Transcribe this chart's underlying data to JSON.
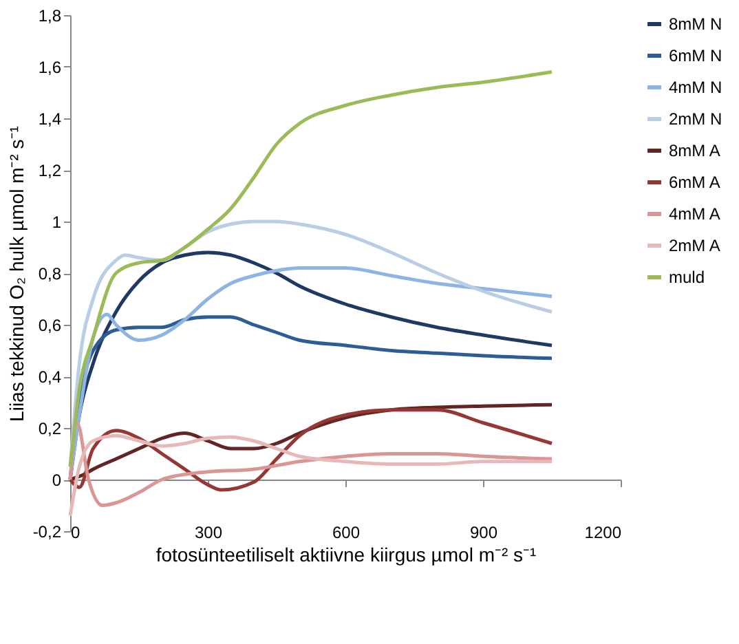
{
  "chart_data": {
    "type": "line",
    "xlabel": "fotosünteetiliselt aktiivne kiirgus µmol m⁻² s⁻¹",
    "ylabel": "Liias tekkinud O₂ hulk µmol m⁻² s⁻¹",
    "xlim": [
      0,
      1200
    ],
    "xticks": [
      0,
      300,
      600,
      900,
      1200
    ],
    "ylim": [
      -0.2,
      1.8
    ],
    "yticks": [
      {
        "value": -0.2,
        "label": "-0,2"
      },
      0,
      {
        "value": 0.2,
        "label": "0,2"
      },
      {
        "value": 0.4,
        "label": "0,4"
      },
      {
        "value": 0.6,
        "label": "0,6"
      },
      {
        "value": 0.8,
        "label": "0,8"
      },
      1,
      {
        "value": 1.2,
        "label": "1,2"
      },
      {
        "value": 1.4,
        "label": "1,4"
      },
      {
        "value": 1.6,
        "label": "1,6"
      },
      {
        "value": 1.8,
        "label": "1,8"
      }
    ],
    "grid": false,
    "legend": "right",
    "marker": "none",
    "line_style": "solid",
    "series": [
      {
        "name": "8mM N",
        "color": "#1f3864",
        "x": [
          0,
          20,
          50,
          100,
          150,
          200,
          250,
          300,
          350,
          400,
          450,
          500,
          600,
          700,
          800,
          900,
          1050
        ],
        "values": [
          0.0,
          0.25,
          0.45,
          0.65,
          0.77,
          0.84,
          0.87,
          0.88,
          0.87,
          0.84,
          0.8,
          0.75,
          0.68,
          0.63,
          0.59,
          0.56,
          0.52
        ]
      },
      {
        "name": "6mM N",
        "color": "#2e5c94",
        "x": [
          0,
          20,
          50,
          100,
          150,
          200,
          250,
          300,
          350,
          400,
          450,
          500,
          600,
          700,
          800,
          900,
          1050
        ],
        "values": [
          0.0,
          0.3,
          0.5,
          0.58,
          0.59,
          0.59,
          0.62,
          0.63,
          0.63,
          0.6,
          0.57,
          0.54,
          0.52,
          0.5,
          0.49,
          0.48,
          0.47
        ]
      },
      {
        "name": "4mM N",
        "color": "#8eb4e3",
        "x": [
          0,
          20,
          50,
          80,
          100,
          150,
          200,
          250,
          300,
          350,
          400,
          450,
          500,
          600,
          700,
          800,
          900,
          1050
        ],
        "values": [
          0.0,
          0.25,
          0.55,
          0.64,
          0.6,
          0.54,
          0.56,
          0.62,
          0.7,
          0.76,
          0.79,
          0.81,
          0.82,
          0.82,
          0.79,
          0.76,
          0.74,
          0.71
        ]
      },
      {
        "name": "2mM N",
        "color": "#b9cde5",
        "x": [
          0,
          20,
          50,
          100,
          120,
          150,
          200,
          250,
          300,
          350,
          400,
          450,
          500,
          600,
          700,
          800,
          900,
          1050
        ],
        "values": [
          0.05,
          0.45,
          0.7,
          0.85,
          0.87,
          0.86,
          0.85,
          0.9,
          0.96,
          0.99,
          1.0,
          1.0,
          0.99,
          0.95,
          0.88,
          0.8,
          0.73,
          0.65
        ]
      },
      {
        "name": "8mM A",
        "color": "#632523",
        "x": [
          0,
          30,
          50,
          100,
          150,
          200,
          250,
          300,
          350,
          400,
          450,
          500,
          600,
          700,
          800,
          900,
          1050
        ],
        "values": [
          0.0,
          0.02,
          0.04,
          0.08,
          0.12,
          0.16,
          0.18,
          0.15,
          0.12,
          0.12,
          0.14,
          0.18,
          0.24,
          0.27,
          0.28,
          0.285,
          0.29
        ]
      },
      {
        "name": "6mM A",
        "color": "#953735",
        "x": [
          0,
          20,
          50,
          100,
          150,
          200,
          250,
          300,
          330,
          400,
          450,
          500,
          600,
          700,
          800,
          900,
          1050
        ],
        "values": [
          0.0,
          -0.03,
          0.12,
          0.19,
          0.16,
          0.1,
          0.04,
          -0.02,
          -0.04,
          -0.01,
          0.08,
          0.17,
          0.25,
          0.27,
          0.27,
          0.22,
          0.14
        ]
      },
      {
        "name": "4mM A",
        "color": "#d99694",
        "x": [
          0,
          15,
          40,
          70,
          100,
          150,
          200,
          250,
          300,
          400,
          500,
          600,
          700,
          800,
          900,
          1050
        ],
        "values": [
          0.0,
          0.22,
          0.0,
          -0.1,
          -0.09,
          -0.05,
          0.0,
          0.02,
          0.03,
          0.04,
          0.07,
          0.09,
          0.1,
          0.1,
          0.09,
          0.08
        ]
      },
      {
        "name": "2mM A",
        "color": "#e6b9b8",
        "x": [
          0,
          20,
          50,
          100,
          150,
          200,
          250,
          300,
          350,
          400,
          450,
          500,
          600,
          700,
          800,
          900,
          1050
        ],
        "values": [
          -0.14,
          0.05,
          0.15,
          0.17,
          0.15,
          0.13,
          0.14,
          0.16,
          0.165,
          0.15,
          0.12,
          0.09,
          0.07,
          0.06,
          0.06,
          0.07,
          0.07
        ]
      },
      {
        "name": "muld",
        "color": "#9bbb59",
        "x": [
          0,
          20,
          50,
          100,
          150,
          200,
          250,
          300,
          350,
          400,
          450,
          500,
          600,
          700,
          800,
          900,
          1050
        ],
        "values": [
          0.05,
          0.35,
          0.55,
          0.8,
          0.84,
          0.85,
          0.9,
          0.97,
          1.05,
          1.17,
          1.3,
          1.38,
          1.45,
          1.49,
          1.52,
          1.54,
          1.58
        ]
      }
    ]
  }
}
